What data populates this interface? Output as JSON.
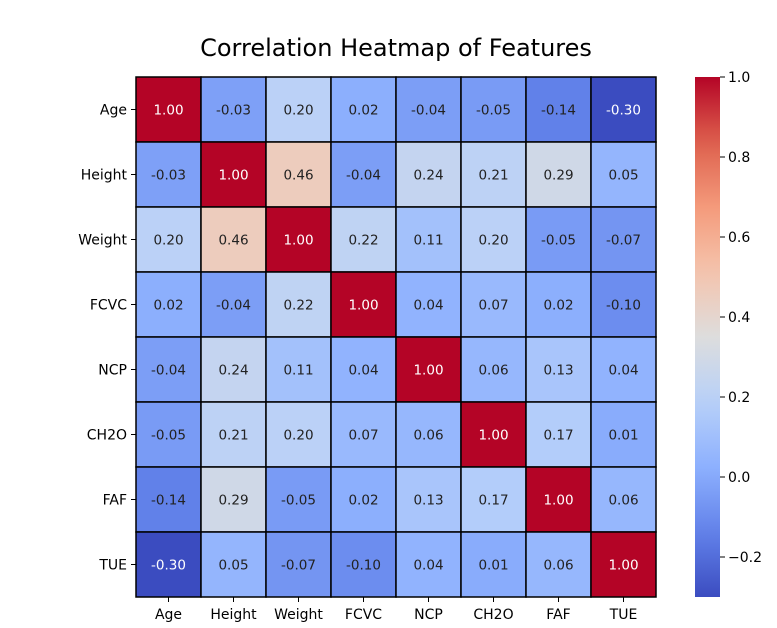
{
  "chart_data": {
    "type": "heatmap",
    "title": "Correlation Heatmap of Features",
    "xlabel": "",
    "ylabel": "",
    "labels": [
      "Age",
      "Height",
      "Weight",
      "FCVC",
      "NCP",
      "CH2O",
      "FAF",
      "TUE"
    ],
    "matrix": [
      [
        1.0,
        -0.03,
        0.2,
        0.02,
        -0.04,
        -0.05,
        -0.14,
        -0.3
      ],
      [
        -0.03,
        1.0,
        0.46,
        -0.04,
        0.24,
        0.21,
        0.29,
        0.05
      ],
      [
        0.2,
        0.46,
        1.0,
        0.22,
        0.11,
        0.2,
        -0.05,
        -0.07
      ],
      [
        0.02,
        -0.04,
        0.22,
        1.0,
        0.04,
        0.07,
        0.02,
        -0.1
      ],
      [
        -0.04,
        0.24,
        0.11,
        0.04,
        1.0,
        0.06,
        0.13,
        0.04
      ],
      [
        -0.05,
        0.21,
        0.2,
        0.07,
        0.06,
        1.0,
        0.17,
        0.01
      ],
      [
        -0.14,
        0.29,
        -0.05,
        0.02,
        0.13,
        0.17,
        1.0,
        0.06
      ],
      [
        -0.3,
        0.05,
        -0.07,
        -0.1,
        0.04,
        0.01,
        0.06,
        1.0
      ]
    ],
    "value_format": "2 decimals",
    "colormap": "coolwarm",
    "color_range": [
      -0.3,
      1.0
    ],
    "colorbar_ticks": [
      -0.2,
      0.0,
      0.2,
      0.4,
      0.6,
      0.8,
      1.0
    ],
    "colorbar_tick_labels": [
      "−0.2",
      "0.0",
      "0.2",
      "0.4",
      "0.6",
      "0.8",
      "1.0"
    ],
    "cell_border_color": "#000000",
    "grid": false,
    "legend": "colorbar-right"
  }
}
